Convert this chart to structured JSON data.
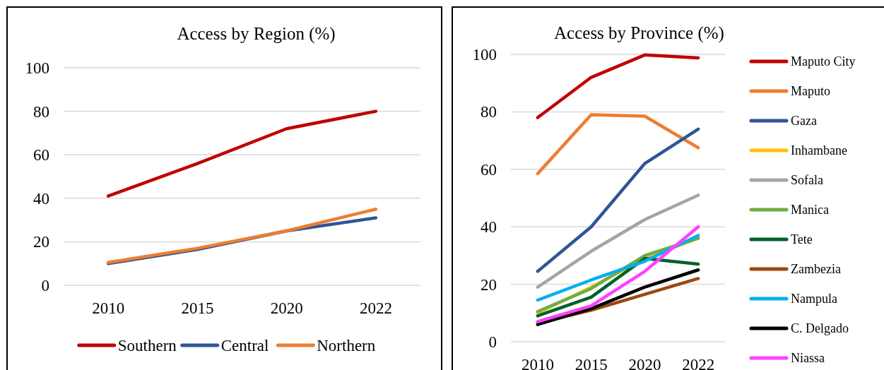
{
  "chart_data": [
    {
      "type": "line",
      "title": "Access by Region (%)",
      "categories": [
        "2010",
        "2015",
        "2020",
        "2022"
      ],
      "ylim": [
        0,
        100
      ],
      "yticks": [
        0,
        20,
        40,
        60,
        80,
        100
      ],
      "grid": "y",
      "legend": "bottom",
      "marker": "none",
      "series": [
        {
          "name": "Southern",
          "color": "#c00000",
          "values": [
            41,
            56,
            72,
            80
          ]
        },
        {
          "name": "Central",
          "color": "#2f5597",
          "values": [
            10,
            16.5,
            25,
            31
          ]
        },
        {
          "name": "Northern",
          "color": "#ed7d31",
          "values": [
            10.5,
            17,
            25,
            35
          ]
        }
      ]
    },
    {
      "type": "line",
      "title": "Access by Province (%)",
      "categories": [
        "2010",
        "2015",
        "2020",
        "2022"
      ],
      "ylim": [
        0,
        100
      ],
      "yticks": [
        0,
        20,
        40,
        60,
        80,
        100
      ],
      "grid": "y",
      "legend": "right",
      "marker": "none",
      "series": [
        {
          "name": "Maputo City",
          "color": "#c00000",
          "values": [
            78,
            92,
            99.8,
            98.8
          ]
        },
        {
          "name": "Maputo",
          "color": "#ed7d31",
          "values": [
            58.5,
            79,
            78.5,
            67.5
          ]
        },
        {
          "name": "Gaza",
          "color": "#2f5597",
          "values": [
            24.5,
            40,
            62,
            74
          ]
        },
        {
          "name": "Inhambane",
          "color": "#ffc000",
          "values": [
            10,
            19,
            29,
            36
          ]
        },
        {
          "name": "Sofala",
          "color": "#a5a5a5",
          "values": [
            19,
            31.5,
            42.5,
            51
          ]
        },
        {
          "name": "Manica",
          "color": "#70ad47",
          "values": [
            10.5,
            18.5,
            30,
            36
          ]
        },
        {
          "name": "Tete",
          "color": "#00602b",
          "values": [
            9,
            15.5,
            29,
            27
          ]
        },
        {
          "name": "Zambezia",
          "color": "#9e480e",
          "values": [
            6.5,
            11,
            16.5,
            22
          ]
        },
        {
          "name": "Nampula",
          "color": "#00b0f0",
          "values": [
            14.5,
            21.5,
            28,
            37
          ]
        },
        {
          "name": "C. Delgado",
          "color": "#000000",
          "values": [
            6,
            11.5,
            19,
            25
          ]
        },
        {
          "name": "Niassa",
          "color": "#ff40ff",
          "values": [
            7,
            12.5,
            24.5,
            40
          ]
        }
      ]
    }
  ]
}
